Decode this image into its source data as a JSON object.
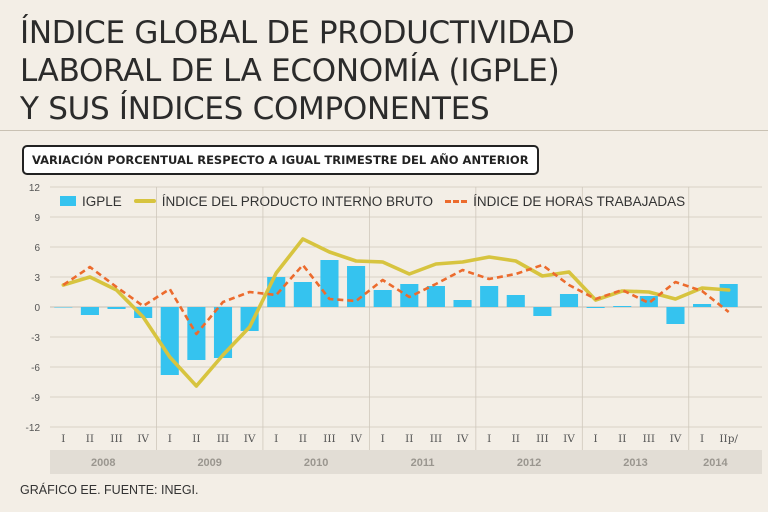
{
  "title_lines": [
    "ÍNDICE GLOBAL DE PRODUCTIVIDAD",
    "LABORAL DE LA ECONOMÍA (IGPLE)",
    "Y SUS ÍNDICES COMPONENTES"
  ],
  "subtitle": "VARIACIÓN PORCENTUAL RESPECTO A IGUAL TRIMESTRE DEL AÑO ANTERIOR",
  "source": "GRÁFICO EE. FUENTE: INEGI.",
  "legend": {
    "igple": "IGPLE",
    "pib": "ÍNDICE DEL PRODUCTO INTERNO BRUTO",
    "horas": "ÍNDICE DE HORAS TRABAJADAS"
  },
  "colors": {
    "igple": "#35c3ef",
    "pib": "#d7c43f",
    "horas": "#ec6b2d",
    "grid": "#cfc8bc",
    "year_band": "#e2ddd5"
  },
  "chart_data": {
    "type": "bar",
    "ylim": [
      -12,
      12
    ],
    "yticks": [
      12,
      9,
      6,
      3,
      0,
      -3,
      -6,
      -9,
      -12
    ],
    "categories": [
      "I",
      "II",
      "III",
      "IV",
      "I",
      "II",
      "III",
      "IV",
      "I",
      "II",
      "III",
      "IV",
      "I",
      "II",
      "III",
      "IV",
      "I",
      "II",
      "III",
      "IV",
      "I",
      "II",
      "III",
      "IV",
      "I",
      "IIp/"
    ],
    "years": [
      {
        "label": "2008",
        "start": 0,
        "end": 3
      },
      {
        "label": "2009",
        "start": 4,
        "end": 7
      },
      {
        "label": "2010",
        "start": 8,
        "end": 11
      },
      {
        "label": "2011",
        "start": 12,
        "end": 15
      },
      {
        "label": "2012",
        "start": 16,
        "end": 19
      },
      {
        "label": "2013",
        "start": 20,
        "end": 23
      },
      {
        "label": "2014",
        "start": 24,
        "end": 25
      }
    ],
    "series": [
      {
        "name": "IGPLE",
        "type": "bar",
        "values": [
          0.0,
          -0.8,
          -0.2,
          -1.1,
          -6.8,
          -5.3,
          -5.1,
          -2.4,
          3.0,
          2.5,
          4.7,
          4.1,
          1.7,
          2.3,
          2.1,
          0.7,
          2.1,
          1.2,
          -0.9,
          1.3,
          -0.1,
          0.1,
          1.1,
          -1.7,
          0.3,
          2.3
        ]
      },
      {
        "name": "ÍNDICE DEL PRODUCTO INTERNO BRUTO",
        "type": "line",
        "values": [
          2.2,
          3.0,
          1.7,
          -1.0,
          -5.0,
          -7.9,
          -4.8,
          -2.0,
          3.4,
          6.8,
          5.5,
          4.6,
          4.5,
          3.3,
          4.3,
          4.5,
          5.0,
          4.6,
          3.1,
          3.5,
          0.7,
          1.6,
          1.5,
          0.8,
          1.9,
          1.7
        ]
      },
      {
        "name": "ÍNDICE DE HORAS TRABAJADAS",
        "type": "line-dashed",
        "values": [
          2.2,
          4.0,
          2.0,
          0.1,
          1.8,
          -2.7,
          0.5,
          1.5,
          1.2,
          4.2,
          0.8,
          0.6,
          2.7,
          1.0,
          2.3,
          3.7,
          2.8,
          3.3,
          4.2,
          2.2,
          0.8,
          1.7,
          0.4,
          2.5,
          1.6,
          -0.5
        ]
      }
    ]
  }
}
